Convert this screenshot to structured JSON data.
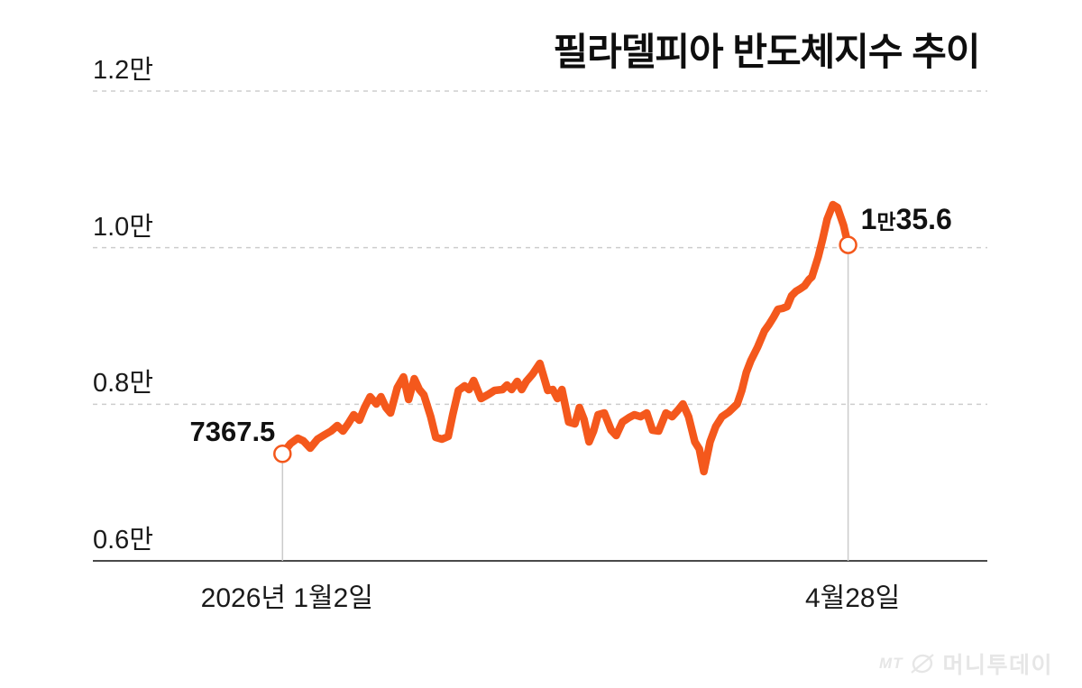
{
  "chart_data": {
    "type": "line",
    "title": "필라델피아 반도체지수 추이",
    "xlabel": "",
    "ylabel": "",
    "ylim": [
      6000,
      12000
    ],
    "grid": "horizontal-dashed",
    "legend": "none",
    "line_color": "#F4581C",
    "grid_color": "#CDCDCD",
    "axis_color": "#4A4A4A",
    "ref_line_color": "#CBCBCB",
    "marker": "open-circle-endpoints",
    "yticks": [
      {
        "value": 12000,
        "label": "1.2만"
      },
      {
        "value": 10000,
        "label": "1.0만"
      },
      {
        "value": 8000,
        "label": "0.8만"
      },
      {
        "value": 6000,
        "label": "0.6만"
      }
    ],
    "xticks": [
      {
        "frac": 0,
        "label": "2026년 1월2일"
      },
      {
        "frac": 1,
        "label": "4월28일"
      }
    ],
    "start_label": "7367.5",
    "end_label": "1만35.6",
    "end_label_parts": [
      "1",
      "만",
      "35.6"
    ],
    "series": [
      {
        "name": "필라델피아 반도체지수",
        "points": [
          [
            0.0,
            7367.5
          ],
          [
            0.014,
            7497
          ],
          [
            0.027,
            7566
          ],
          [
            0.037,
            7532
          ],
          [
            0.049,
            7440
          ],
          [
            0.062,
            7555
          ],
          [
            0.075,
            7612
          ],
          [
            0.086,
            7658
          ],
          [
            0.097,
            7727
          ],
          [
            0.107,
            7658
          ],
          [
            0.116,
            7750
          ],
          [
            0.126,
            7866
          ],
          [
            0.136,
            7796
          ],
          [
            0.145,
            7958
          ],
          [
            0.155,
            8096
          ],
          [
            0.166,
            8004
          ],
          [
            0.174,
            8096
          ],
          [
            0.183,
            7958
          ],
          [
            0.191,
            7889
          ],
          [
            0.203,
            8211
          ],
          [
            0.214,
            8349
          ],
          [
            0.223,
            8061
          ],
          [
            0.233,
            8326
          ],
          [
            0.242,
            8188
          ],
          [
            0.25,
            8119
          ],
          [
            0.262,
            7842
          ],
          [
            0.271,
            7578
          ],
          [
            0.282,
            7555
          ],
          [
            0.293,
            7589
          ],
          [
            0.301,
            7866
          ],
          [
            0.311,
            8177
          ],
          [
            0.322,
            8234
          ],
          [
            0.33,
            8188
          ],
          [
            0.338,
            8303
          ],
          [
            0.351,
            8073
          ],
          [
            0.365,
            8130
          ],
          [
            0.375,
            8177
          ],
          [
            0.389,
            8188
          ],
          [
            0.397,
            8246
          ],
          [
            0.405,
            8188
          ],
          [
            0.415,
            8292
          ],
          [
            0.423,
            8188
          ],
          [
            0.431,
            8292
          ],
          [
            0.442,
            8384
          ],
          [
            0.455,
            8522
          ],
          [
            0.469,
            8177
          ],
          [
            0.478,
            8188
          ],
          [
            0.486,
            8073
          ],
          [
            0.494,
            8188
          ],
          [
            0.506,
            7773
          ],
          [
            0.517,
            7750
          ],
          [
            0.525,
            7958
          ],
          [
            0.533,
            7808
          ],
          [
            0.542,
            7520
          ],
          [
            0.55,
            7658
          ],
          [
            0.558,
            7866
          ],
          [
            0.569,
            7889
          ],
          [
            0.581,
            7670
          ],
          [
            0.59,
            7601
          ],
          [
            0.601,
            7773
          ],
          [
            0.613,
            7831
          ],
          [
            0.622,
            7866
          ],
          [
            0.633,
            7842
          ],
          [
            0.644,
            7889
          ],
          [
            0.654,
            7670
          ],
          [
            0.665,
            7658
          ],
          [
            0.678,
            7889
          ],
          [
            0.689,
            7842
          ],
          [
            0.699,
            7923
          ],
          [
            0.708,
            8004
          ],
          [
            0.718,
            7842
          ],
          [
            0.729,
            7520
          ],
          [
            0.737,
            7428
          ],
          [
            0.745,
            7140
          ],
          [
            0.756,
            7520
          ],
          [
            0.766,
            7716
          ],
          [
            0.777,
            7842
          ],
          [
            0.789,
            7900
          ],
          [
            0.804,
            8004
          ],
          [
            0.812,
            8177
          ],
          [
            0.82,
            8407
          ],
          [
            0.828,
            8557
          ],
          [
            0.84,
            8729
          ],
          [
            0.852,
            8937
          ],
          [
            0.86,
            9017
          ],
          [
            0.868,
            9109
          ],
          [
            0.876,
            9213
          ],
          [
            0.884,
            9225
          ],
          [
            0.892,
            9248
          ],
          [
            0.9,
            9386
          ],
          [
            0.908,
            9443
          ],
          [
            0.916,
            9478
          ],
          [
            0.923,
            9512
          ],
          [
            0.931,
            9593
          ],
          [
            0.936,
            9628
          ],
          [
            0.947,
            9881
          ],
          [
            0.955,
            10111
          ],
          [
            0.963,
            10365
          ],
          [
            0.973,
            10549
          ],
          [
            0.981,
            10514
          ],
          [
            0.992,
            10284
          ],
          [
            1.0,
            10035.6
          ]
        ]
      }
    ]
  },
  "watermark": {
    "prefix": "MT",
    "name": "머니투데이"
  }
}
